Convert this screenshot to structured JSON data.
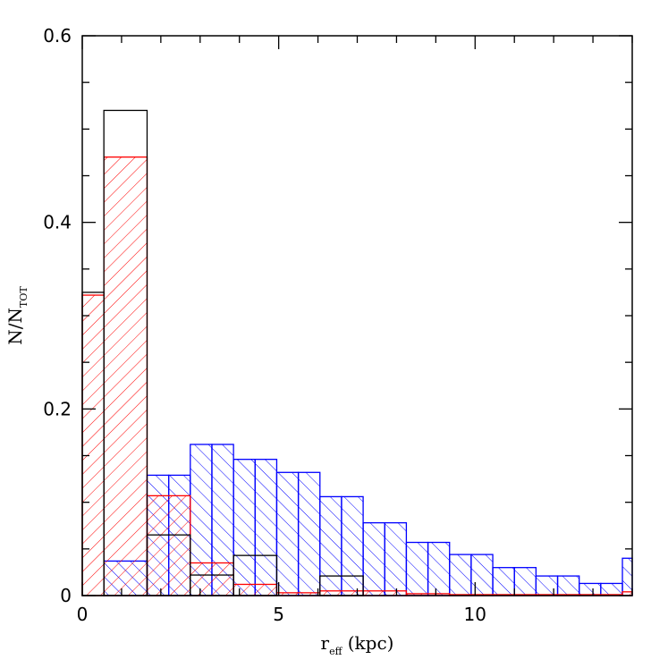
{
  "chart_data": {
    "type": "bar",
    "xlabel": "r",
    "xlabel_subscript": "eff",
    "xlabel_suffix": " (kpc)",
    "ylabel": "N/N",
    "ylabel_subscript": "TOT",
    "xlim": [
      0,
      14
    ],
    "ylim": [
      0,
      0.6
    ],
    "x_ticks": [
      0,
      5,
      10
    ],
    "x_tick_labels": [
      "0",
      "5",
      "10"
    ],
    "y_ticks": [
      0,
      0.2,
      0.4,
      0.6
    ],
    "y_tick_labels": [
      "0",
      "0.2",
      "0.4",
      "0.6"
    ],
    "x_minor_step": 1,
    "y_minor_step": 0.05,
    "grid": false,
    "series": [
      {
        "style": "outline",
        "color": "#000000",
        "edges": [
          0,
          0.55,
          1.65,
          2.75,
          3.85,
          4.95,
          6.05,
          7.15,
          8.25,
          9.35,
          10.45,
          11.55,
          12.65,
          13.75,
          14.0
        ],
        "values": [
          0.325,
          0.52,
          0.065,
          0.022,
          0.043,
          0.0,
          0.021,
          0.0,
          0.0,
          0.0,
          0.0,
          0.0,
          0.0,
          0.0
        ]
      },
      {
        "style": "hatch-forward",
        "color": "#ff0000",
        "edges": [
          0,
          0.55,
          1.65,
          2.75,
          3.85,
          4.95,
          6.05,
          7.15,
          8.25,
          9.35,
          10.45,
          11.55,
          12.65,
          13.75,
          14.0
        ],
        "values": [
          0.322,
          0.47,
          0.107,
          0.035,
          0.012,
          0.003,
          0.005,
          0.005,
          0.002,
          0.001,
          0.001,
          0.001,
          0.001,
          0.004
        ]
      },
      {
        "style": "hatch-back",
        "color": "#0000ff",
        "edges": [
          0,
          0.55,
          1.65,
          2.2,
          2.75,
          3.3,
          3.85,
          4.4,
          4.95,
          5.5,
          6.05,
          6.6,
          7.15,
          7.7,
          8.25,
          8.8,
          9.35,
          9.9,
          10.45,
          11.0,
          11.55,
          12.1,
          12.65,
          13.2,
          13.75,
          14.0
        ],
        "values": [
          0.0,
          0.037,
          0.129,
          0.129,
          0.162,
          0.162,
          0.146,
          0.146,
          0.132,
          0.132,
          0.106,
          0.106,
          0.078,
          0.078,
          0.057,
          0.057,
          0.044,
          0.044,
          0.03,
          0.03,
          0.021,
          0.021,
          0.013,
          0.013,
          0.04
        ]
      }
    ]
  }
}
